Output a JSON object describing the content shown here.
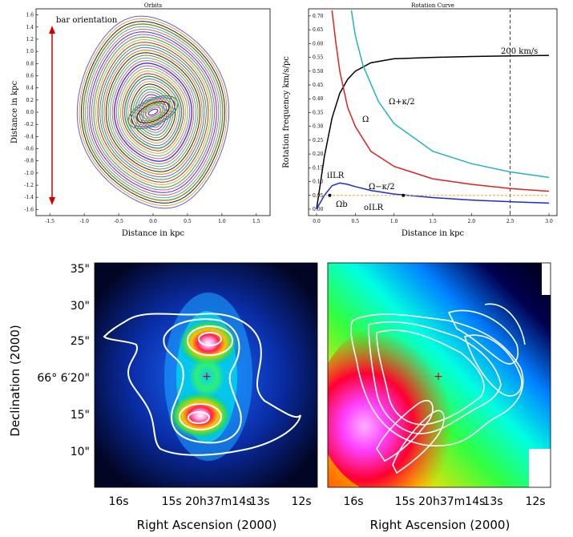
{
  "figure": {
    "orbits": {
      "title": "Orbits",
      "xlabel": "Distance in kpc",
      "ylabel": "Distance in kpc",
      "annotation": "bar orientation",
      "x_ticks": [
        "-1.5",
        "-1.0",
        "-0.5",
        "0.0",
        "0.5",
        "1.0",
        "1.5"
      ],
      "y_ticks": [
        "1.6",
        "1.4",
        "1.2",
        "1.0",
        "0.8",
        "0.6",
        "0.4",
        "0.2",
        "0.0",
        "-0.2",
        "-0.4",
        "-0.6",
        "-0.8",
        "-1.0",
        "-1.2",
        "-1.4",
        "-1.6"
      ],
      "arrow_color": "#d40000"
    },
    "rotation": {
      "title": "Rotation Curve",
      "xlabel": "Distance in kpc",
      "ylabel": "Rotation frequency km/s/pc",
      "x_ticks": [
        "0.0",
        "0.5",
        "1.0",
        "1.5",
        "2.0",
        "2.5",
        "3.0"
      ],
      "y_ticks": [
        "0.00",
        "0.05",
        "0.10",
        "0.15",
        "0.20",
        "0.25",
        "0.30",
        "0.35",
        "0.40",
        "0.45",
        "0.50",
        "0.55",
        "0.60",
        "0.65",
        "0.70"
      ],
      "labels": {
        "velocity": "200 km/s",
        "omega_plus": "Ω+κ/2",
        "omega": "Ω",
        "omega_minus": "Ω−κ/2",
        "iilr": "iILR",
        "oilr": "oILR",
        "omega_b": "Ωb"
      }
    },
    "maps": {
      "ylabel": "Declination (2000)",
      "xlabel_left": "Right Ascension (2000)",
      "xlabel_right": "Right Ascension (2000)",
      "dec_ticks": [
        "35\"",
        "30\"",
        "25\"",
        "66° 6′20\"",
        "15\"",
        "10\""
      ],
      "ra_ticks": [
        "16s",
        "15s 20h37m14s",
        "13s",
        "12s"
      ]
    }
  },
  "chart_data": [
    {
      "type": "line",
      "title": "Orbits",
      "xlabel": "Distance in kpc",
      "ylabel": "Distance in kpc",
      "xlim": [
        -1.7,
        1.7
      ],
      "ylim": [
        -1.7,
        1.7
      ],
      "series": [
        {
          "values": "nested closed orbits elongated along the bar, outermost reaching about ±1.1 kpc in x and ±1.6 kpc in y, inner compact orbits near 0"
        }
      ],
      "annotations": [
        "bar orientation"
      ]
    },
    {
      "type": "line",
      "title": "Rotation Curve",
      "xlabel": "Distance in kpc",
      "ylabel": "Rotation frequency km/s/pc",
      "xlim": [
        0,
        3.0
      ],
      "ylim": [
        0,
        0.72
      ],
      "series": [
        {
          "name": "200 km/s",
          "color": "#000000",
          "x": [
            0.0,
            0.1,
            0.2,
            0.3,
            0.4,
            0.5,
            0.7,
            1.0,
            1.5,
            2.0,
            2.5,
            3.0
          ],
          "y": [
            0.0,
            0.19,
            0.33,
            0.42,
            0.47,
            0.5,
            0.53,
            0.545,
            0.55,
            0.553,
            0.555,
            0.557
          ]
        },
        {
          "name": "Ω+κ/2",
          "color": "#1fb3c4",
          "x": [
            0.45,
            0.5,
            0.6,
            0.8,
            1.0,
            1.5,
            2.0,
            2.5,
            3.0
          ],
          "y": [
            0.72,
            0.63,
            0.52,
            0.39,
            0.31,
            0.21,
            0.165,
            0.135,
            0.115
          ]
        },
        {
          "name": "Ω",
          "color": "#e02020",
          "x": [
            0.2,
            0.25,
            0.3,
            0.4,
            0.5,
            0.7,
            1.0,
            1.5,
            2.0,
            2.5,
            3.0
          ],
          "y": [
            0.72,
            0.6,
            0.5,
            0.37,
            0.3,
            0.21,
            0.155,
            0.11,
            0.09,
            0.075,
            0.065
          ]
        },
        {
          "name": "Ω−κ/2",
          "color": "#1a2bd8",
          "x": [
            0.0,
            0.1,
            0.2,
            0.3,
            0.4,
            0.5,
            0.7,
            1.0,
            1.5,
            2.0,
            2.5,
            3.0
          ],
          "y": [
            0.0,
            0.05,
            0.085,
            0.095,
            0.09,
            0.082,
            0.068,
            0.055,
            0.042,
            0.033,
            0.027,
            0.022
          ]
        },
        {
          "name": "Ωb",
          "color": "#f0b040",
          "x": [
            0.0,
            3.0
          ],
          "y": [
            0.05,
            0.05
          ]
        }
      ],
      "annotations": [
        "iILR",
        "oILR",
        "Ωb",
        "200 km/s"
      ],
      "vline_x": 2.5
    }
  ]
}
